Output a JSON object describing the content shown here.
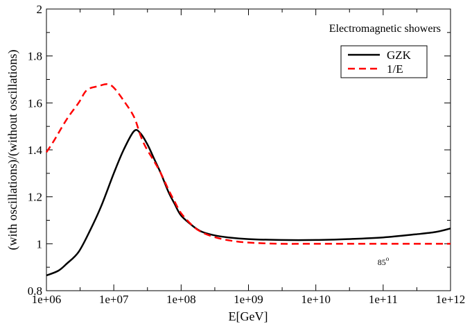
{
  "chart_data": {
    "type": "line",
    "xlabel": "E[GeV]",
    "ylabel": "(with oscillations)/(without oscillations)",
    "x_scale": "log",
    "xlim": [
      1000000,
      1000000000000
    ],
    "ylim": [
      0.8,
      2.0
    ],
    "x_ticks": [
      1000000,
      10000000,
      100000000,
      1000000000,
      10000000000,
      100000000000,
      1000000000000
    ],
    "x_tick_labels": [
      "1e+06",
      "1e+07",
      "1e+08",
      "1e+09",
      "1e+10",
      "1e+11",
      "1e+12"
    ],
    "y_ticks": [
      0.8,
      1.0,
      1.2,
      1.4,
      1.6,
      1.8,
      2.0
    ],
    "y_tick_labels": [
      "0.8",
      "1",
      "1.2",
      "1.4",
      "1.6",
      "1.8",
      "2"
    ],
    "annotations": [
      "Electromagnetic showers",
      "85"
    ],
    "annotation_superscript": "o",
    "legend_position": "top-right",
    "grid": false,
    "series": [
      {
        "name": "GZK",
        "color": "#000000",
        "style": "solid",
        "x": [
          1000000,
          1500000,
          2000000,
          3000000,
          4500000,
          6500000,
          10000000,
          14000000,
          20000000,
          25000000,
          32000000,
          40000000,
          50000000,
          65000000,
          80000000,
          100000000,
          150000000,
          200000000,
          300000000,
          500000000,
          1000000000,
          3000000000,
          10000000000,
          30000000000,
          100000000000,
          300000000000,
          600000000000,
          1000000000000
        ],
        "y": [
          0.865,
          0.885,
          0.915,
          0.965,
          1.06,
          1.16,
          1.3,
          1.4,
          1.48,
          1.47,
          1.42,
          1.36,
          1.3,
          1.22,
          1.17,
          1.12,
          1.075,
          1.052,
          1.037,
          1.027,
          1.02,
          1.016,
          1.016,
          1.02,
          1.027,
          1.04,
          1.05,
          1.065
        ]
      },
      {
        "name": "1/E",
        "color": "#ff0000",
        "style": "dashed",
        "x": [
          1000000,
          1300000,
          2000000,
          3000000,
          4000000,
          6000000,
          8000000,
          10000000,
          14000000,
          20000000,
          25000000,
          30000000,
          40000000,
          50000000,
          65000000,
          80000000,
          100000000,
          150000000,
          200000000,
          300000000,
          500000000,
          1000000000,
          3000000000,
          10000000000,
          100000000000,
          1000000000000
        ],
        "y": [
          1.39,
          1.44,
          1.53,
          1.6,
          1.655,
          1.672,
          1.68,
          1.665,
          1.61,
          1.54,
          1.46,
          1.41,
          1.35,
          1.3,
          1.23,
          1.18,
          1.13,
          1.075,
          1.05,
          1.03,
          1.015,
          1.005,
          1.0,
          1.0,
          1.0,
          1.0
        ]
      }
    ]
  }
}
